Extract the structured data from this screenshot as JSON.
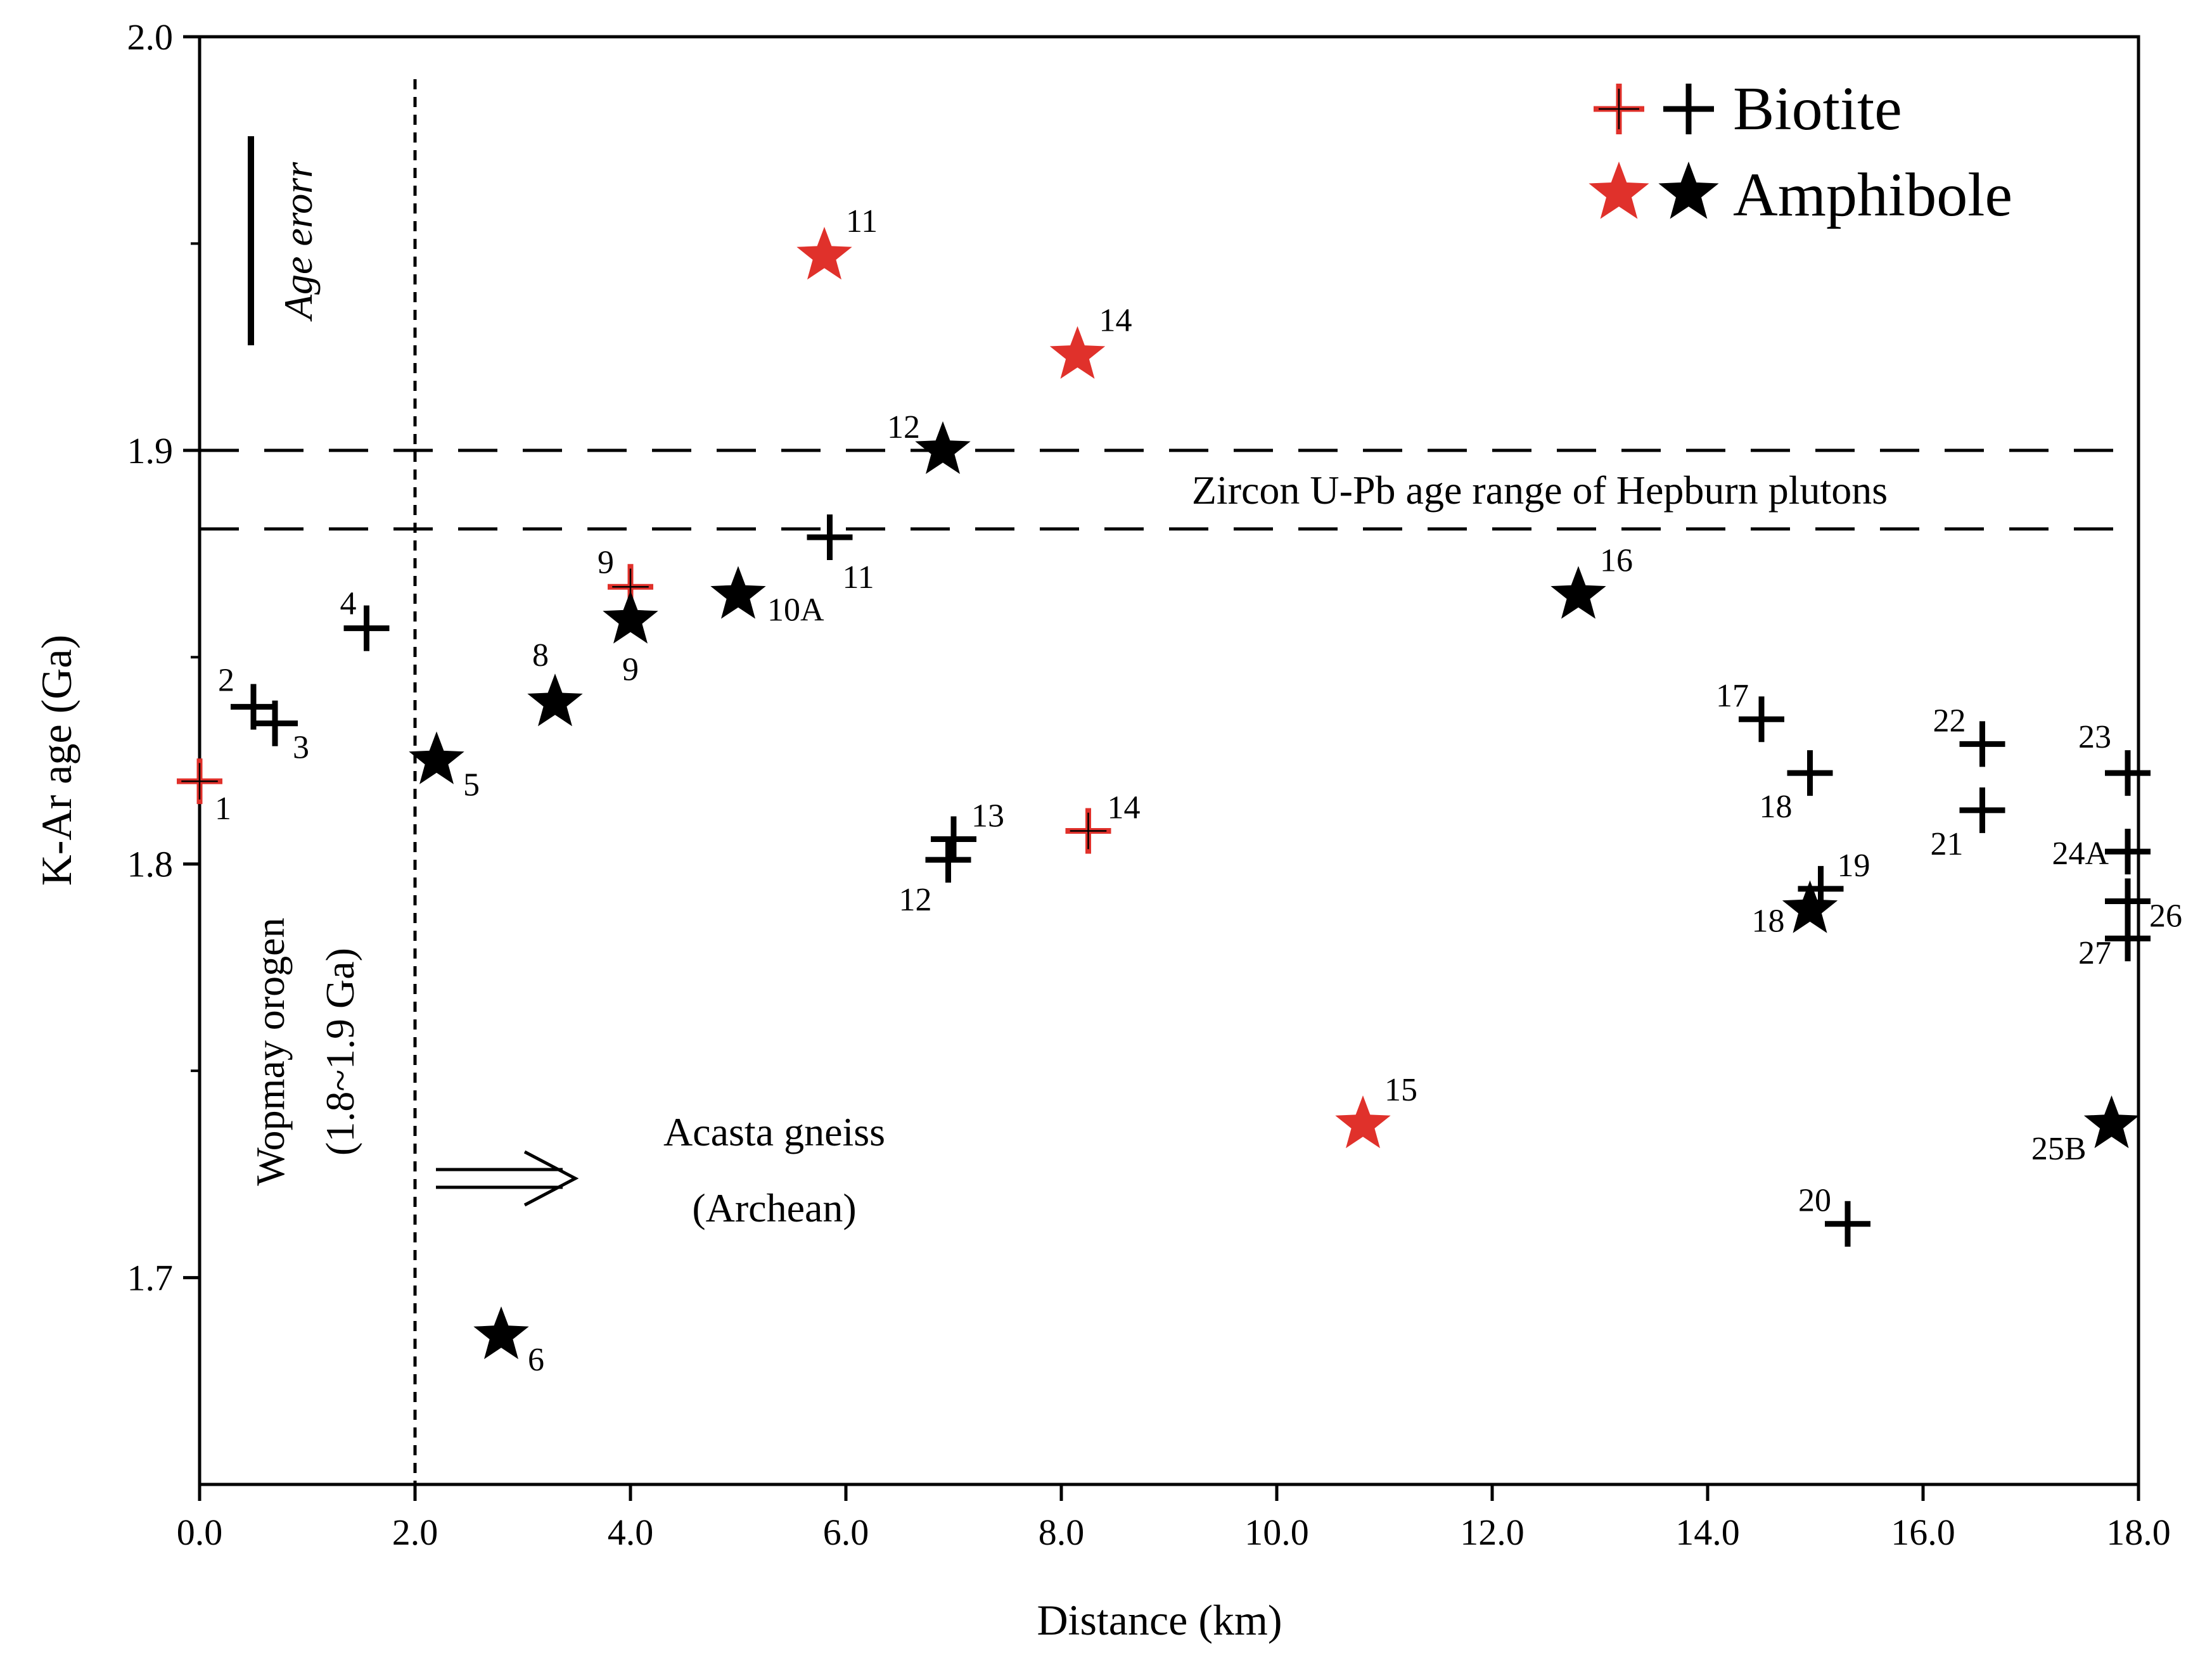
{
  "chart_data": {
    "type": "scatter",
    "xlabel": "Distance (km)",
    "ylabel": "K-Ar age (Ga)",
    "xlim": [
      0,
      18
    ],
    "ylim": [
      1.65,
      2.0
    ],
    "x_ticks": [
      "0.0",
      "2.0",
      "4.0",
      "6.0",
      "8.0",
      "10.0",
      "12.0",
      "14.0",
      "16.0",
      "18.0"
    ],
    "y_ticks": [
      "1.7",
      "1.8",
      "1.9",
      "2.0"
    ],
    "colors": {
      "red": "#e0312b",
      "black": "#000000"
    },
    "legend": {
      "biotite": "Biotite",
      "amphibole": "Amphibole"
    },
    "reference_lines": [
      1.9,
      1.881
    ],
    "vertical_line_x": 2.0,
    "annotations": {
      "zircon": "Zircon U-Pb age range of Hepburn plutons",
      "wopmay_1": "Wopmay orogen",
      "wopmay_2": "(1.8~1.9 Ga)",
      "acasta_1": "Acasta gneiss",
      "acasta_2": "(Archean)",
      "age_error": "Age erorr"
    },
    "series": [
      {
        "name": "Biotite",
        "marker": "plus",
        "points": [
          {
            "label": "1",
            "x": 0.0,
            "y": 1.82,
            "color": "red"
          },
          {
            "label": "2",
            "x": 0.5,
            "y": 1.838,
            "color": "black"
          },
          {
            "label": "3",
            "x": 0.7,
            "y": 1.834,
            "color": "black"
          },
          {
            "label": "4",
            "x": 1.55,
            "y": 1.857,
            "color": "black"
          },
          {
            "label": "9",
            "x": 4.0,
            "y": 1.867,
            "color": "red"
          },
          {
            "label": "11",
            "x": 5.85,
            "y": 1.879,
            "color": "black"
          },
          {
            "label": "12",
            "x": 6.95,
            "y": 1.801,
            "color": "black"
          },
          {
            "label": "13",
            "x": 7.0,
            "y": 1.806,
            "color": "black"
          },
          {
            "label": "14",
            "x": 8.25,
            "y": 1.808,
            "color": "red"
          },
          {
            "label": "17",
            "x": 14.5,
            "y": 1.835,
            "color": "black"
          },
          {
            "label": "18",
            "x": 14.95,
            "y": 1.822,
            "color": "black"
          },
          {
            "label": "19",
            "x": 15.05,
            "y": 1.794,
            "color": "black"
          },
          {
            "label": "20",
            "x": 15.3,
            "y": 1.713,
            "color": "black"
          },
          {
            "label": "21",
            "x": 16.55,
            "y": 1.813,
            "color": "black"
          },
          {
            "label": "22",
            "x": 16.55,
            "y": 1.829,
            "color": "black"
          },
          {
            "label": "23",
            "x": 17.9,
            "y": 1.822,
            "color": "black"
          },
          {
            "label": "24A",
            "x": 17.9,
            "y": 1.803,
            "color": "black"
          },
          {
            "label": "26",
            "x": 17.9,
            "y": 1.791,
            "color": "black"
          },
          {
            "label": "27",
            "x": 17.9,
            "y": 1.782,
            "color": "black"
          }
        ]
      },
      {
        "name": "Amphibole",
        "marker": "star",
        "points": [
          {
            "label": "5",
            "x": 2.2,
            "y": 1.825,
            "color": "black"
          },
          {
            "label": "6",
            "x": 2.8,
            "y": 1.686,
            "color": "black"
          },
          {
            "label": "8",
            "x": 3.3,
            "y": 1.839,
            "color": "black"
          },
          {
            "label": "9",
            "x": 4.0,
            "y": 1.859,
            "color": "black"
          },
          {
            "label": "10A",
            "x": 5.0,
            "y": 1.865,
            "color": "black"
          },
          {
            "label": "11",
            "x": 5.8,
            "y": 1.947,
            "color": "red"
          },
          {
            "label": "12",
            "x": 6.9,
            "y": 1.9,
            "color": "black"
          },
          {
            "label": "14",
            "x": 8.15,
            "y": 1.923,
            "color": "red"
          },
          {
            "label": "15",
            "x": 10.8,
            "y": 1.737,
            "color": "red"
          },
          {
            "label": "16",
            "x": 12.8,
            "y": 1.865,
            "color": "black"
          },
          {
            "label": "18",
            "x": 14.95,
            "y": 1.789,
            "color": "black"
          },
          {
            "label": "25B",
            "x": 17.75,
            "y": 1.737,
            "color": "black"
          }
        ]
      }
    ]
  }
}
